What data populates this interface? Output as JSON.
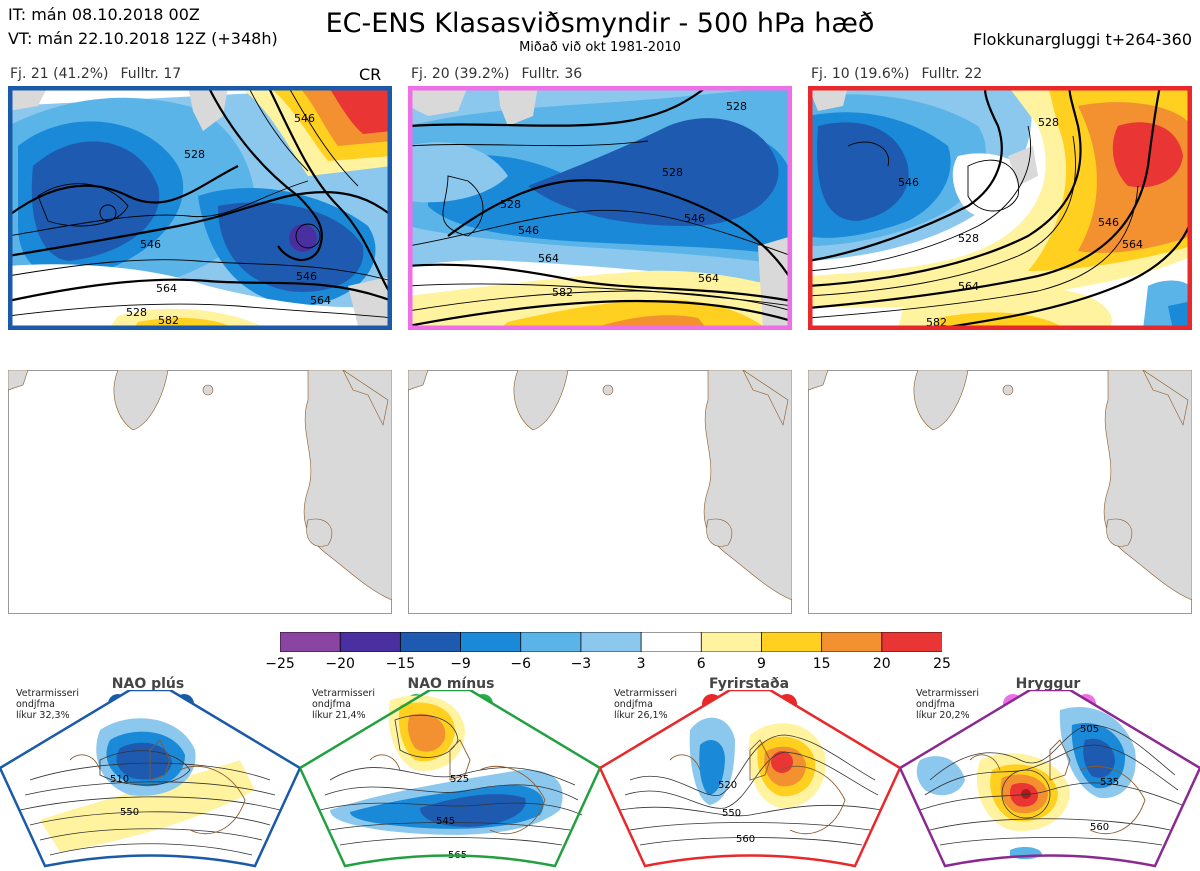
{
  "header": {
    "line1": "IT: mán 08.10.2018 00Z",
    "line2": "VT: mán 22.10.2018 12Z  (+348h)",
    "title": "EC-ENS Klasasviðsmyndir - 500 hPa hæð",
    "subtitle": "Miðað við okt 1981-2010",
    "window": "Flokkunargluggi t+264-360"
  },
  "clusters": [
    {
      "label": "Fj. 21 (41.2%)",
      "rep": "Fulltr. 17",
      "tag": "CR",
      "frame_color": "#1a5aa8",
      "contour_labels": [
        "528",
        "546",
        "564",
        "582",
        "546",
        "528",
        "564",
        "546"
      ]
    },
    {
      "label": "Fj. 20 (39.2%)",
      "rep": "Fulltr. 36",
      "tag": "",
      "frame_color": "#ee6fe6",
      "contour_labels": [
        "528",
        "528",
        "546",
        "564",
        "546",
        "564",
        "582",
        "528"
      ]
    },
    {
      "label": "Fj. 10 (19.6%)",
      "rep": "Fulltr. 22",
      "tag": "",
      "frame_color": "#e8282a",
      "contour_labels": [
        "528",
        "546",
        "564",
        "582",
        "546",
        "528",
        "564"
      ]
    }
  ],
  "colorbar": {
    "ticks": [
      "−25",
      "−20",
      "−15",
      "−9",
      "−6",
      "−3",
      "3",
      "6",
      "9",
      "15",
      "20",
      "25"
    ],
    "colors": [
      "#8a45a0",
      "#4a2fa0",
      "#1e5bb0",
      "#1a8ad8",
      "#5ab4e8",
      "#8cc8ee",
      "#ffffff",
      "#fff3a0",
      "#ffd020",
      "#f39030",
      "#ea3535",
      "#b51818"
    ]
  },
  "regimes": [
    {
      "name": "NAO plús",
      "note": "Vetrarmisseri\nondjfma\nlíkur 32,3%",
      "dot_color": "#1a5aa8",
      "frame_color": "#1a5aa8",
      "contour_labels": [
        "510",
        "550"
      ]
    },
    {
      "name": "NAO mínus",
      "note": "Vetrarmisseri\nondjfma\nlíkur 21,4%",
      "dot_color": "#22b04a",
      "frame_color": "#22a040",
      "contour_labels": [
        "525",
        "545",
        "565"
      ]
    },
    {
      "name": "Fyrirstaða",
      "note": "Vetrarmisseri\nondjfma\nlíkur 26,1%",
      "dot_color": "#e8282a",
      "frame_color": "#e8282a",
      "contour_labels": [
        "520",
        "550",
        "560"
      ]
    },
    {
      "name": "Hryggur",
      "note": "Vetrarmisseri\nondjfma\nlíkur 20,2%",
      "dot_color": "#ee6fe6",
      "frame_color": "#8a2a90",
      "contour_labels": [
        "505",
        "535",
        "560"
      ]
    }
  ]
}
